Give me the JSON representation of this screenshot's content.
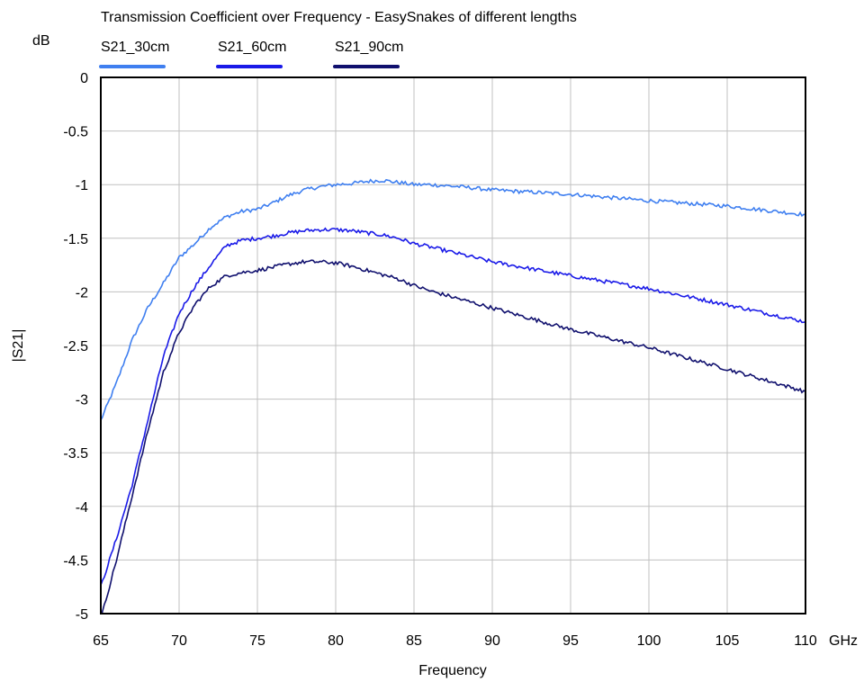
{
  "chart_data": {
    "type": "line",
    "title": "Transmission Coefficient over Frequency - EasySnakes of different lengths",
    "xlabel": "Frequency",
    "ylabel": "|S21|",
    "x_unit": "GHz",
    "y_unit": "dB",
    "xlim": [
      65,
      110
    ],
    "ylim": [
      -5,
      0
    ],
    "x_ticks": [
      65,
      70,
      75,
      80,
      85,
      90,
      95,
      100,
      105,
      110
    ],
    "y_ticks": [
      0,
      -0.5,
      -1,
      -1.5,
      -2,
      -2.5,
      -3,
      -3.5,
      -4,
      -4.5,
      -5
    ],
    "x_tick_labels": [
      "65",
      "70",
      "75",
      "80",
      "85",
      "90",
      "95",
      "100",
      "105",
      "110"
    ],
    "y_tick_labels": [
      "0",
      "-0.5",
      "-1",
      "-1.5",
      "-2",
      "-2.5",
      "-3",
      "-3.5",
      "-4",
      "-4.5",
      "-5"
    ],
    "grid": true,
    "legend_position": "top",
    "series": [
      {
        "name": "S21_30cm",
        "color": "#3f7ff0",
        "x": [
          65,
          66,
          67,
          68,
          69,
          70,
          71,
          72,
          73,
          74,
          75,
          76,
          77,
          78,
          79,
          80,
          81,
          82,
          83,
          84,
          85,
          86,
          88,
          90,
          95,
          100,
          105,
          110
        ],
        "y": [
          -3.2,
          -2.85,
          -2.45,
          -2.15,
          -1.92,
          -1.68,
          -1.55,
          -1.4,
          -1.3,
          -1.25,
          -1.23,
          -1.17,
          -1.1,
          -1.05,
          -1.02,
          -1.0,
          -0.99,
          -0.97,
          -0.96,
          -0.98,
          -1.0,
          -1.0,
          -1.02,
          -1.05,
          -1.09,
          -1.15,
          -1.2,
          -1.28
        ]
      },
      {
        "name": "S21_60cm",
        "color": "#1a1ae8",
        "x": [
          65,
          66,
          67,
          68,
          69,
          70,
          71,
          72,
          73,
          74,
          75,
          76,
          77,
          78,
          79,
          80,
          81,
          82,
          83,
          84,
          85,
          86,
          88,
          90,
          95,
          100,
          105,
          110
        ],
        "y": [
          -4.75,
          -4.3,
          -3.8,
          -3.2,
          -2.6,
          -2.2,
          -1.95,
          -1.75,
          -1.57,
          -1.52,
          -1.5,
          -1.48,
          -1.45,
          -1.43,
          -1.42,
          -1.42,
          -1.43,
          -1.45,
          -1.47,
          -1.5,
          -1.55,
          -1.58,
          -1.65,
          -1.72,
          -1.85,
          -1.97,
          -2.12,
          -2.28
        ]
      },
      {
        "name": "S21_90cm",
        "color": "#10106e",
        "x": [
          65,
          66,
          67,
          68,
          69,
          70,
          71,
          72,
          73,
          74,
          75,
          76,
          77,
          78,
          79,
          80,
          81,
          82,
          83,
          84,
          85,
          86,
          88,
          90,
          95,
          100,
          105,
          110
        ],
        "y": [
          -5.05,
          -4.5,
          -3.9,
          -3.3,
          -2.75,
          -2.38,
          -2.12,
          -1.95,
          -1.85,
          -1.82,
          -1.8,
          -1.77,
          -1.74,
          -1.72,
          -1.72,
          -1.73,
          -1.76,
          -1.8,
          -1.84,
          -1.88,
          -1.94,
          -1.99,
          -2.07,
          -2.15,
          -2.35,
          -2.52,
          -2.72,
          -2.93
        ]
      }
    ]
  },
  "colors": {
    "grid": "#c0c0c0",
    "frame": "#000000",
    "background": "#ffffff"
  }
}
